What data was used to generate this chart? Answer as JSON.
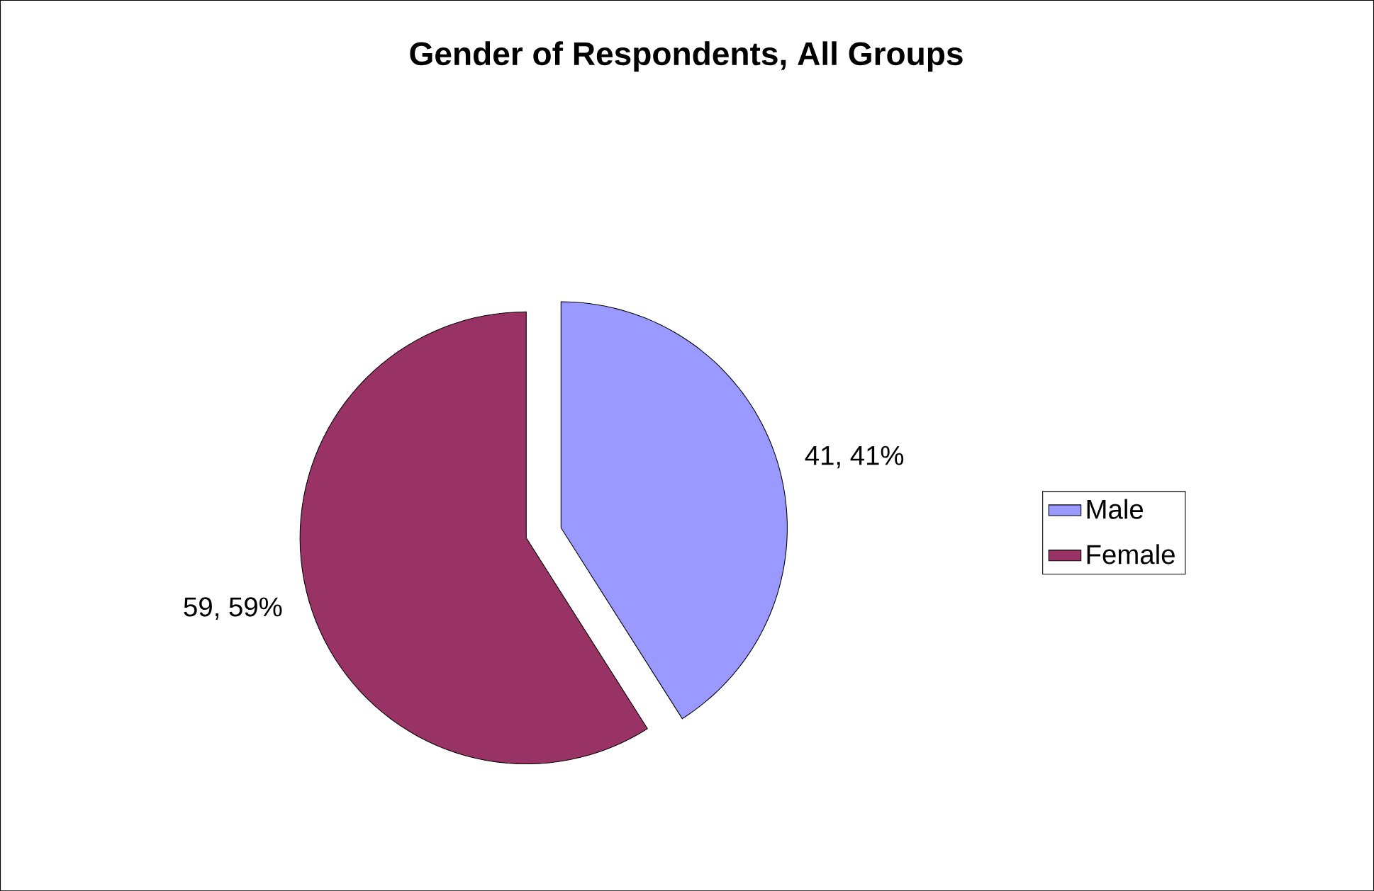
{
  "chart_data": {
    "type": "pie",
    "title": "Gender of Respondents, All Groups",
    "categories": [
      "Male",
      "Female"
    ],
    "values": [
      41,
      59
    ],
    "colors": [
      "#9999ff",
      "#993366"
    ],
    "value_labels": [
      "41, 41%",
      "59, 59%"
    ],
    "legend": "right"
  }
}
